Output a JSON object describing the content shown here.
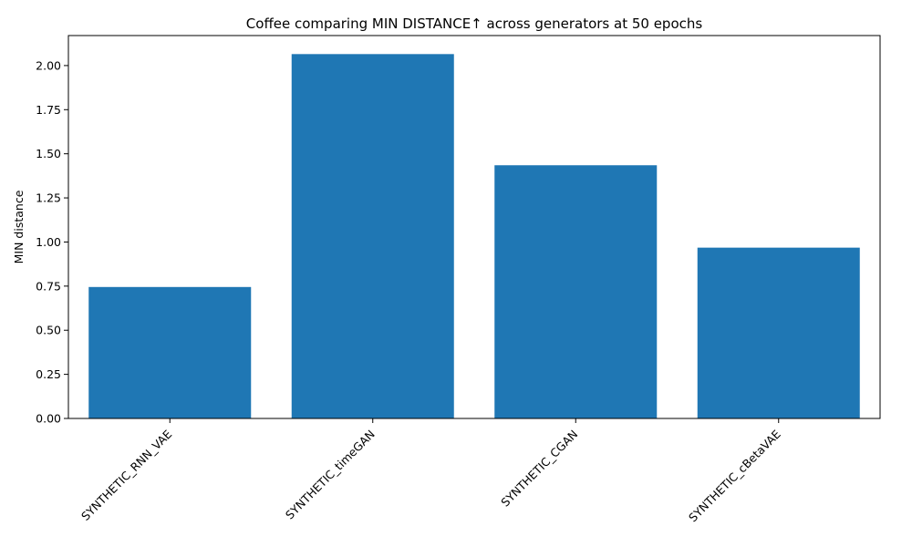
{
  "chart_data": {
    "type": "bar",
    "title": "Coffee comparing MIN DISTANCE↑  across generators at 50 epochs",
    "xlabel": "",
    "ylabel": "MIN distance",
    "categories": [
      "SYNTHETIC_RNN_VAE",
      "SYNTHETIC_timeGAN",
      "SYNTHETIC_CGAN",
      "SYNTHETIC_cBetaVAE"
    ],
    "values": [
      0.745,
      2.065,
      1.435,
      0.968
    ],
    "ylim": [
      0,
      2.17
    ],
    "yticks": [
      0.0,
      0.25,
      0.5,
      0.75,
      1.0,
      1.25,
      1.5,
      1.75,
      2.0
    ],
    "ytick_labels": [
      "0.00",
      "0.25",
      "0.50",
      "0.75",
      "1.00",
      "1.25",
      "1.50",
      "1.75",
      "2.00"
    ],
    "bar_color": "#1f77b4",
    "grid": false,
    "legend": "none"
  }
}
